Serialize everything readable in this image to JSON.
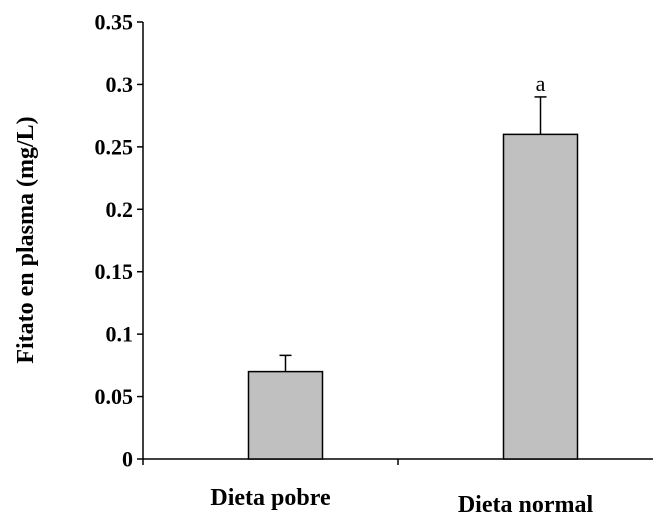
{
  "chart_data": {
    "type": "bar",
    "title": "",
    "xlabel": "",
    "ylabel": "Fitato en plasma (mg/L)",
    "categories": [
      "Dieta pobre",
      "Dieta normal"
    ],
    "values": [
      0.07,
      0.26
    ],
    "error_bars": [
      0.013,
      0.03
    ],
    "annotations": [
      "",
      "a"
    ],
    "ylim": [
      0,
      0.35
    ],
    "yticks": [
      "0",
      "0.05",
      "0.1",
      "0.15",
      "0.2",
      "0.25",
      "0.3",
      "0.35"
    ],
    "ytick_values": [
      0,
      0.05,
      0.1,
      0.15,
      0.2,
      0.25,
      0.3,
      0.35
    ],
    "grid": false,
    "legend": "none",
    "colors": {
      "bar_fill": "#c0c0c0",
      "bar_stroke": "#000000",
      "axis": "#000000"
    }
  }
}
